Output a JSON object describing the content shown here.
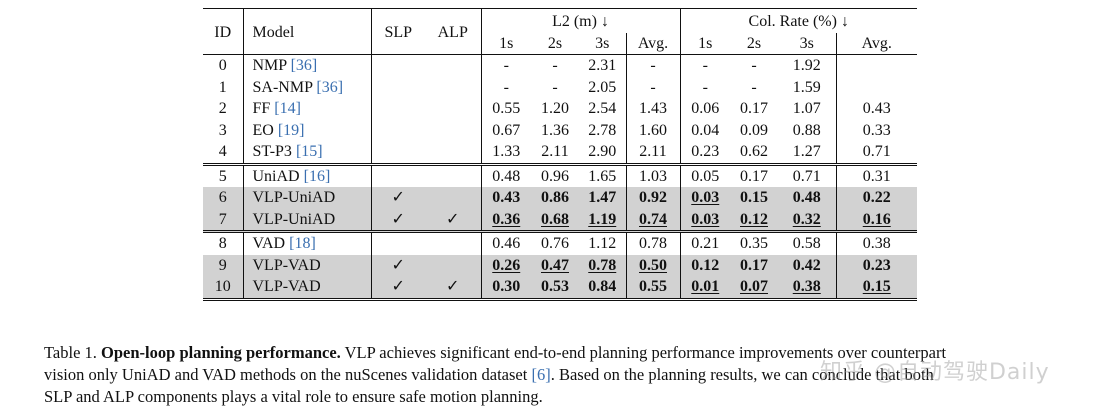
{
  "table": {
    "headers": {
      "id": "ID",
      "model": "Model",
      "slp": "SLP",
      "alp": "ALP",
      "l2_group": "L2 (m) ↓",
      "col_group": "Col. Rate (%) ↓",
      "sub": [
        "1s",
        "2s",
        "3s",
        "Avg.",
        "1s",
        "2s",
        "3s",
        "Avg."
      ]
    },
    "rows": [
      {
        "id": "0",
        "model": "NMP ",
        "cite": "[36]",
        "slp": "",
        "alp": "",
        "vals": [
          "-",
          "-",
          "2.31",
          "-",
          "-",
          "-",
          "1.92",
          ""
        ]
      },
      {
        "id": "1",
        "model": "SA-NMP ",
        "cite": "[36]",
        "slp": "",
        "alp": "",
        "vals": [
          "-",
          "-",
          "2.05",
          "-",
          "-",
          "-",
          "1.59",
          ""
        ]
      },
      {
        "id": "2",
        "model": "FF ",
        "cite": "[14]",
        "slp": "",
        "alp": "",
        "vals": [
          "0.55",
          "1.20",
          "2.54",
          "1.43",
          "0.06",
          "0.17",
          "1.07",
          "0.43"
        ]
      },
      {
        "id": "3",
        "model": "EO ",
        "cite": "[19]",
        "slp": "",
        "alp": "",
        "vals": [
          "0.67",
          "1.36",
          "2.78",
          "1.60",
          "0.04",
          "0.09",
          "0.88",
          "0.33"
        ]
      },
      {
        "id": "4",
        "model": "ST-P3 ",
        "cite": "[15]",
        "slp": "",
        "alp": "",
        "vals": [
          "1.33",
          "2.11",
          "2.90",
          "2.11",
          "0.23",
          "0.62",
          "1.27",
          "0.71"
        ]
      },
      {
        "id": "5",
        "model": "UniAD ",
        "cite": "[16]",
        "slp": "",
        "alp": "",
        "vals": [
          "0.48",
          "0.96",
          "1.65",
          "1.03",
          "0.05",
          "0.17",
          "0.71",
          "0.31"
        ]
      },
      {
        "id": "6",
        "model": "VLP-UniAD",
        "cite": "",
        "slp": "✓",
        "alp": "",
        "vals": [
          "0.43",
          "0.86",
          "1.47",
          "0.92",
          "0.03",
          "0.15",
          "0.48",
          "0.22"
        ]
      },
      {
        "id": "7",
        "model": "VLP-UniAD",
        "cite": "",
        "slp": "✓",
        "alp": "✓",
        "vals": [
          "0.36",
          "0.68",
          "1.19",
          "0.74",
          "0.03",
          "0.12",
          "0.32",
          "0.16"
        ]
      },
      {
        "id": "8",
        "model": "VAD ",
        "cite": "[18]",
        "slp": "",
        "alp": "",
        "vals": [
          "0.46",
          "0.76",
          "1.12",
          "0.78",
          "0.21",
          "0.35",
          "0.58",
          "0.38"
        ]
      },
      {
        "id": "9",
        "model": "VLP-VAD",
        "cite": "",
        "slp": "✓",
        "alp": "",
        "vals": [
          "0.26",
          "0.47",
          "0.78",
          "0.50",
          "0.12",
          "0.17",
          "0.42",
          "0.23"
        ]
      },
      {
        "id": "10",
        "model": "VLP-VAD",
        "cite": "",
        "slp": "✓",
        "alp": "✓",
        "vals": [
          "0.30",
          "0.53",
          "0.84",
          "0.55",
          "0.01",
          "0.07",
          "0.38",
          "0.15"
        ]
      }
    ]
  },
  "caption": {
    "label": "Table 1. ",
    "title": "Open-loop planning performance.",
    "line1_rest": " VLP achieves significant end-to-end planning performance improvements over counterpart",
    "line2_before_cite": "vision only UniAD and VAD methods on the nuScenes validation dataset ",
    "line2_cite": "[6]",
    "line2_after_cite": ". Based on the planning results, we can conclude that both",
    "line3": "SLP and ALP components plays a vital role to ensure safe motion planning."
  },
  "watermark": "知乎 @自动驾驶Daily"
}
